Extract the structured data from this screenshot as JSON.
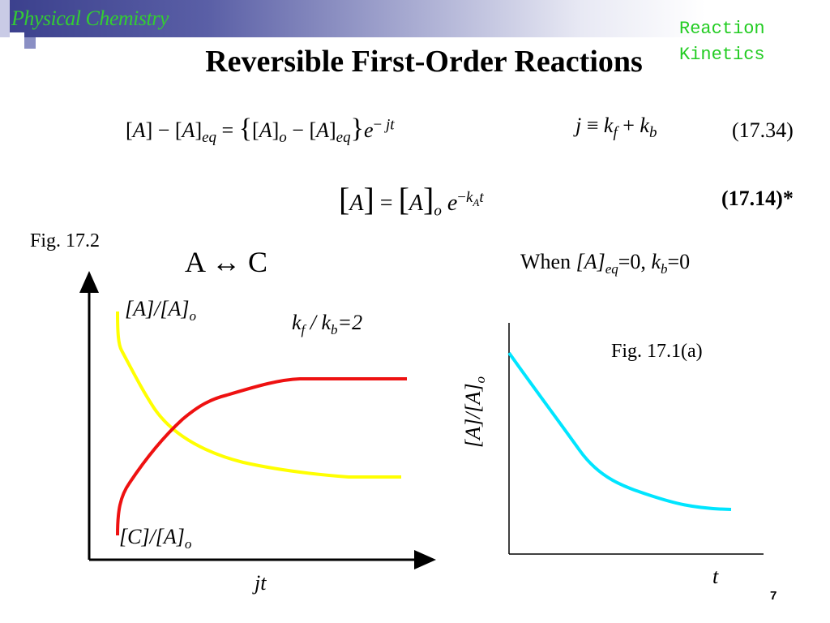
{
  "header": {
    "subject": "Physical Chemistry",
    "corner_line1": "Reaction",
    "corner_line2": "Kinetics"
  },
  "title": "Reversible First-Order Reactions",
  "equations": {
    "eq1_number": "(17.34)",
    "eq2_number": "(17.14)*",
    "j_definition": "j ≡ k_f + k_b"
  },
  "figure_left": {
    "caption": "Fig. 17.2",
    "reaction": "A ↔ C",
    "ratio_label": "k_f / k_b=2",
    "curve_a_label": "[A]/[A]_o",
    "curve_c_label": "[C]/[A]_o",
    "x_axis_label": "jt"
  },
  "figure_right": {
    "condition": "When [A]_eq=0, k_b=0",
    "caption": "Fig. 17.1(a)",
    "y_axis_label": "[A]/[A]_o",
    "x_axis_label": "t"
  },
  "page_number": "7",
  "colors": {
    "banner": "#3a3f8c",
    "subject_text": "#33cc33",
    "curve_a": "#ffff00",
    "curve_c": "#ee1111",
    "curve_decay": "#00e5ff"
  },
  "chart_data": [
    {
      "type": "line",
      "title": "Fig. 17.2",
      "xlabel": "jt",
      "ylabel": "",
      "series": [
        {
          "name": "[A]/[A]_o",
          "x": [
            0,
            1,
            2,
            3,
            4,
            5
          ],
          "values": [
            1.0,
            0.55,
            0.42,
            0.37,
            0.34,
            0.34
          ]
        },
        {
          "name": "[C]/[A]_o",
          "x": [
            0,
            1,
            2,
            3,
            4,
            5
          ],
          "values": [
            0.0,
            0.45,
            0.58,
            0.63,
            0.66,
            0.66
          ]
        }
      ]
    },
    {
      "type": "line",
      "title": "Fig. 17.1(a)",
      "xlabel": "t",
      "ylabel": "[A]/[A]_o",
      "series": [
        {
          "name": "[A]/[A]_o",
          "x": [
            0,
            1,
            2,
            3,
            4,
            5
          ],
          "values": [
            1.0,
            0.6,
            0.36,
            0.22,
            0.13,
            0.08
          ]
        }
      ]
    }
  ]
}
